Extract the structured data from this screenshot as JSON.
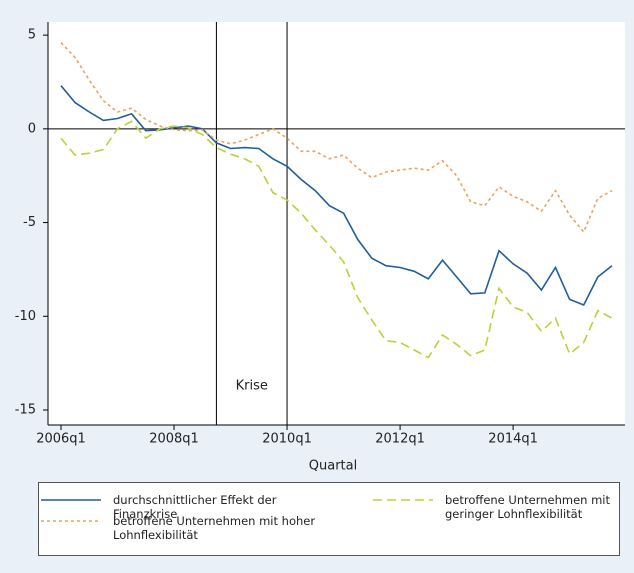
{
  "chart_data": {
    "type": "line",
    "x_label": "Quartal",
    "annotation": "Krise",
    "categories": [
      "2006q1",
      null,
      null,
      null,
      null,
      null,
      null,
      null,
      "2008q1",
      null,
      null,
      null,
      null,
      null,
      null,
      null,
      "2010q1",
      null,
      null,
      null,
      null,
      null,
      null,
      null,
      "2012q1",
      null,
      null,
      null,
      null,
      null,
      null,
      null,
      "2014q1",
      null,
      null,
      null,
      null,
      null,
      null,
      null
    ],
    "reference_lines_at": [
      11,
      16
    ],
    "hline": 0,
    "series": [
      {
        "name": "durchschnittlicher Effekt der Finanzkrise",
        "color": "#1f5f9e",
        "dash": "none",
        "values": [
          2.3,
          1.4,
          0.9,
          0.45,
          0.55,
          0.8,
          -0.1,
          -0.05,
          0.05,
          0.15,
          0,
          -0.75,
          -1.05,
          -1.0,
          -1.05,
          -1.6,
          -2.0,
          -2.7,
          -3.3,
          -4.1,
          -4.5,
          -5.9,
          -6.9,
          -7.3,
          -7.4,
          -7.6,
          -8.0,
          -7.0,
          -7.9,
          -8.8,
          -8.75,
          -6.5,
          -7.2,
          -7.7,
          -8.6,
          -7.4,
          -9.1,
          -9.4,
          -7.9,
          -7.3
        ]
      },
      {
        "name": "betroffene Unternehmen mit hoher Lohnflexibilität",
        "color": "#f0a058",
        "dash": "3 3",
        "values": [
          4.6,
          3.8,
          2.6,
          1.5,
          0.9,
          1.1,
          0.5,
          0.15,
          -0.05,
          -0.1,
          -0.05,
          -0.6,
          -0.8,
          -0.6,
          -0.3,
          0,
          -0.5,
          -1.2,
          -1.2,
          -1.6,
          -1.4,
          -2.1,
          -2.6,
          -2.3,
          -2.2,
          -2.1,
          -2.2,
          -1.7,
          -2.5,
          -3.9,
          -4.1,
          -3.1,
          -3.6,
          -3.9,
          -4.4,
          -3.3,
          -4.6,
          -5.5,
          -3.7,
          -3.3
        ]
      },
      {
        "name": "betroffene Unternehmen mit geringer Lohnflexibilität",
        "color": "#b8d336",
        "dash": "9 5",
        "values": [
          -0.5,
          -1.4,
          -1.3,
          -1.1,
          0,
          0.4,
          -0.5,
          0,
          0.15,
          0.05,
          -0.3,
          -1.0,
          -1.35,
          -1.6,
          -2.0,
          -3.4,
          -3.8,
          -4.5,
          -5.4,
          -6.2,
          -7.1,
          -9.0,
          -10.2,
          -11.3,
          -11.4,
          -11.8,
          -12.2,
          -11.0,
          -11.5,
          -12.1,
          -11.8,
          -8.5,
          -9.5,
          -9.8,
          -10.8,
          -10.1,
          -12.0,
          -11.4,
          -9.7,
          -10.1
        ]
      }
    ],
    "ylim": [
      -15.8,
      5.7
    ],
    "yticks": [
      5,
      0,
      -5,
      -10,
      -15
    ]
  }
}
